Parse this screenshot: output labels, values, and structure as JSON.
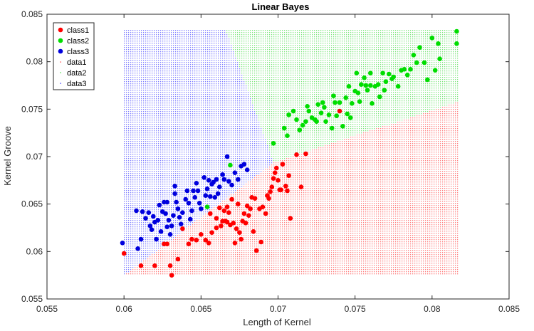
{
  "chart_data": {
    "type": "scatter",
    "title": "Linear  Bayes",
    "xlabel": "Length of Kernel",
    "ylabel": "Kernel Groove",
    "xlim": [
      0.055,
      0.085
    ],
    "ylim": [
      0.055,
      0.085
    ],
    "xticks": [
      0.055,
      0.06,
      0.065,
      0.07,
      0.075,
      0.08,
      0.085
    ],
    "yticks": [
      0.055,
      0.06,
      0.065,
      0.07,
      0.075,
      0.08,
      0.085
    ],
    "xtick_labels": [
      "0.055",
      "0.06",
      "0.065",
      "0.07",
      "0.075",
      "0.08",
      "0.085"
    ],
    "ytick_labels": [
      "0.055",
      "0.06",
      "0.065",
      "0.07",
      "0.075",
      "0.08",
      "0.085"
    ],
    "grid": false,
    "legend_position": "top-left",
    "decision_region_extent": {
      "x": [
        0.06,
        0.0817
      ],
      "y": [
        0.0575,
        0.0833
      ]
    },
    "decision_regions": [
      {
        "name": "data1",
        "color": "#ff0000",
        "rule": "below line from (0.0697, 0.0694) to (0.0817, 0.0758)"
      },
      {
        "name": "data2",
        "color": "#00cc00",
        "rule": "right of line from (0.0666, 0.0833) to (0.0697, 0.0694), above data1 boundary"
      },
      {
        "name": "data3",
        "color": "#0000ff",
        "rule": "left of line from (0.0666, 0.0833) to (0.0697, 0.0694) and to (0.06, 0.0575)"
      }
    ],
    "series": [
      {
        "name": "class1",
        "color": "#ff0000",
        "points": [
          [
            0.06,
            0.0598
          ],
          [
            0.0611,
            0.0585
          ],
          [
            0.062,
            0.0585
          ],
          [
            0.0626,
            0.0608
          ],
          [
            0.0628,
            0.0608
          ],
          [
            0.063,
            0.0585
          ],
          [
            0.0631,
            0.0575
          ],
          [
            0.0635,
            0.0592
          ],
          [
            0.0638,
            0.0624
          ],
          [
            0.0642,
            0.0608
          ],
          [
            0.0644,
            0.0613
          ],
          [
            0.0647,
            0.0612
          ],
          [
            0.065,
            0.0618
          ],
          [
            0.0653,
            0.0612
          ],
          [
            0.0655,
            0.0609
          ],
          [
            0.0657,
            0.062
          ],
          [
            0.066,
            0.0625
          ],
          [
            0.0664,
            0.0632
          ],
          [
            0.0666,
            0.0632
          ],
          [
            0.0665,
            0.0643
          ],
          [
            0.0667,
            0.0647
          ],
          [
            0.0668,
            0.0641
          ],
          [
            0.0669,
            0.0628
          ],
          [
            0.067,
            0.0655
          ],
          [
            0.0671,
            0.063
          ],
          [
            0.0672,
            0.0609
          ],
          [
            0.0673,
            0.0624
          ],
          [
            0.0675,
            0.062
          ],
          [
            0.0676,
            0.0613
          ],
          [
            0.0677,
            0.0632
          ],
          [
            0.0678,
            0.064
          ],
          [
            0.0679,
            0.063
          ],
          [
            0.068,
            0.0648
          ],
          [
            0.0681,
            0.0638
          ],
          [
            0.0682,
            0.0645
          ],
          [
            0.0683,
            0.0657
          ],
          [
            0.0684,
            0.0621
          ],
          [
            0.0686,
            0.0601
          ],
          [
            0.0689,
            0.061
          ],
          [
            0.069,
            0.0647
          ],
          [
            0.0692,
            0.064
          ],
          [
            0.0694,
            0.0656
          ],
          [
            0.0695,
            0.0663
          ],
          [
            0.0696,
            0.0668
          ],
          [
            0.0697,
            0.0677
          ],
          [
            0.0698,
            0.0683
          ],
          [
            0.07,
            0.0675
          ],
          [
            0.0701,
            0.0665
          ],
          [
            0.0702,
            0.0665
          ],
          [
            0.0703,
            0.0692
          ],
          [
            0.0705,
            0.0669
          ],
          [
            0.0706,
            0.0664
          ],
          [
            0.0707,
            0.068
          ],
          [
            0.0708,
            0.0635
          ],
          [
            0.0712,
            0.0702
          ],
          [
            0.0715,
            0.0668
          ],
          [
            0.0718,
            0.0703
          ],
          [
            0.066,
            0.0635
          ],
          [
            0.0663,
            0.0627
          ],
          [
            0.0656,
            0.064
          ],
          [
            0.0662,
            0.0646
          ],
          [
            0.0667,
            0.0631
          ],
          [
            0.0674,
            0.065
          ],
          [
            0.0685,
            0.0656
          ],
          [
            0.0688,
            0.0645
          ],
          [
            0.0693,
            0.0659
          ],
          [
            0.0699,
            0.0688
          ],
          [
            0.074,
            0.0748
          ]
        ]
      },
      {
        "name": "class2",
        "color": "#00dd00",
        "points": [
          [
            0.0669,
            0.0691
          ],
          [
            0.0654,
            0.0647
          ],
          [
            0.0697,
            0.0714
          ],
          [
            0.0704,
            0.073
          ],
          [
            0.0706,
            0.0722
          ],
          [
            0.0707,
            0.0744
          ],
          [
            0.071,
            0.0748
          ],
          [
            0.0712,
            0.0739
          ],
          [
            0.0714,
            0.0728
          ],
          [
            0.0716,
            0.0733
          ],
          [
            0.0718,
            0.0737
          ],
          [
            0.0719,
            0.0753
          ],
          [
            0.072,
            0.0748
          ],
          [
            0.0722,
            0.0741
          ],
          [
            0.0724,
            0.0739
          ],
          [
            0.0726,
            0.0755
          ],
          [
            0.0728,
            0.0746
          ],
          [
            0.073,
            0.0752
          ],
          [
            0.0731,
            0.0737
          ],
          [
            0.0733,
            0.0744
          ],
          [
            0.0735,
            0.073
          ],
          [
            0.0736,
            0.0764
          ],
          [
            0.0737,
            0.0757
          ],
          [
            0.0738,
            0.0743
          ],
          [
            0.074,
            0.0757
          ],
          [
            0.0742,
            0.0732
          ],
          [
            0.0744,
            0.0762
          ],
          [
            0.0746,
            0.0774
          ],
          [
            0.0747,
            0.0741
          ],
          [
            0.0748,
            0.0756
          ],
          [
            0.075,
            0.0769
          ],
          [
            0.0751,
            0.0788
          ],
          [
            0.0752,
            0.0767
          ],
          [
            0.0753,
            0.0758
          ],
          [
            0.0754,
            0.0776
          ],
          [
            0.0756,
            0.0783
          ],
          [
            0.0758,
            0.077
          ],
          [
            0.076,
            0.0775
          ],
          [
            0.0761,
            0.0756
          ],
          [
            0.0763,
            0.0774
          ],
          [
            0.0765,
            0.0776
          ],
          [
            0.0766,
            0.0763
          ],
          [
            0.0768,
            0.0788
          ],
          [
            0.0769,
            0.077
          ],
          [
            0.077,
            0.0779
          ],
          [
            0.0772,
            0.0787
          ],
          [
            0.0774,
            0.0782
          ],
          [
            0.0775,
            0.0784
          ],
          [
            0.0778,
            0.0774
          ],
          [
            0.078,
            0.0791
          ],
          [
            0.0782,
            0.0792
          ],
          [
            0.0784,
            0.0786
          ],
          [
            0.0786,
            0.0792
          ],
          [
            0.0788,
            0.0807
          ],
          [
            0.079,
            0.0799
          ],
          [
            0.0792,
            0.0815
          ],
          [
            0.0795,
            0.0799
          ],
          [
            0.0797,
            0.0781
          ],
          [
            0.08,
            0.0825
          ],
          [
            0.0802,
            0.0791
          ],
          [
            0.0804,
            0.0819
          ],
          [
            0.0805,
            0.0803
          ],
          [
            0.0816,
            0.0832
          ],
          [
            0.0816,
            0.0819
          ],
          [
            0.076,
            0.0788
          ],
          [
            0.0757,
            0.0775
          ],
          [
            0.0745,
            0.0745
          ],
          [
            0.0729,
            0.0757
          ],
          [
            0.0725,
            0.0737
          ]
        ]
      },
      {
        "name": "class3",
        "color": "#0000dd",
        "points": [
          [
            0.0599,
            0.0609
          ],
          [
            0.0608,
            0.0643
          ],
          [
            0.0609,
            0.0603
          ],
          [
            0.0611,
            0.0613
          ],
          [
            0.0612,
            0.0642
          ],
          [
            0.0614,
            0.0635
          ],
          [
            0.0616,
            0.0641
          ],
          [
            0.0617,
            0.0627
          ],
          [
            0.0618,
            0.0623
          ],
          [
            0.062,
            0.0631
          ],
          [
            0.0621,
            0.0613
          ],
          [
            0.0622,
            0.0633
          ],
          [
            0.0623,
            0.0649
          ],
          [
            0.0624,
            0.0621
          ],
          [
            0.0625,
            0.0642
          ],
          [
            0.0626,
            0.0652
          ],
          [
            0.0627,
            0.064
          ],
          [
            0.0628,
            0.0626
          ],
          [
            0.0629,
            0.0633
          ],
          [
            0.063,
            0.0618
          ],
          [
            0.0631,
            0.0627
          ],
          [
            0.0632,
            0.0638
          ],
          [
            0.0633,
            0.0661
          ],
          [
            0.0634,
            0.0652
          ],
          [
            0.0635,
            0.0645
          ],
          [
            0.0636,
            0.0636
          ],
          [
            0.0637,
            0.0629
          ],
          [
            0.0638,
            0.0641
          ],
          [
            0.064,
            0.0655
          ],
          [
            0.0641,
            0.0664
          ],
          [
            0.0642,
            0.0651
          ],
          [
            0.0643,
            0.0634
          ],
          [
            0.0644,
            0.0643
          ],
          [
            0.0646,
            0.0657
          ],
          [
            0.0647,
            0.0672
          ],
          [
            0.0648,
            0.0664
          ],
          [
            0.0649,
            0.0651
          ],
          [
            0.065,
            0.0645
          ],
          [
            0.0652,
            0.0678
          ],
          [
            0.0653,
            0.0659
          ],
          [
            0.0654,
            0.0666
          ],
          [
            0.0655,
            0.0675
          ],
          [
            0.0656,
            0.0658
          ],
          [
            0.0657,
            0.0671
          ],
          [
            0.0659,
            0.0657
          ],
          [
            0.066,
            0.0676
          ],
          [
            0.0661,
            0.0661
          ],
          [
            0.0662,
            0.0668
          ],
          [
            0.0664,
            0.0681
          ],
          [
            0.0665,
            0.0676
          ],
          [
            0.0667,
            0.07
          ],
          [
            0.0668,
            0.0674
          ],
          [
            0.067,
            0.067
          ],
          [
            0.0672,
            0.0683
          ],
          [
            0.0674,
            0.0676
          ],
          [
            0.0676,
            0.069
          ],
          [
            0.0678,
            0.0692
          ],
          [
            0.068,
            0.0686
          ],
          [
            0.0633,
            0.0669
          ],
          [
            0.0628,
            0.0652
          ],
          [
            0.0619,
            0.0637
          ],
          [
            0.0645,
            0.0664
          ],
          [
            0.0658,
            0.0673
          ]
        ]
      }
    ],
    "legend": [
      {
        "label": "class1",
        "kind": "marker",
        "color": "#ff0000"
      },
      {
        "label": "class2",
        "kind": "marker",
        "color": "#00dd00"
      },
      {
        "label": "class3",
        "kind": "marker",
        "color": "#0000dd"
      },
      {
        "label": "data1",
        "kind": "dot",
        "color": "#ff0000"
      },
      {
        "label": "data2",
        "kind": "dot",
        "color": "#00cc00"
      },
      {
        "label": "data3",
        "kind": "dot",
        "color": "#0000ff"
      }
    ]
  }
}
